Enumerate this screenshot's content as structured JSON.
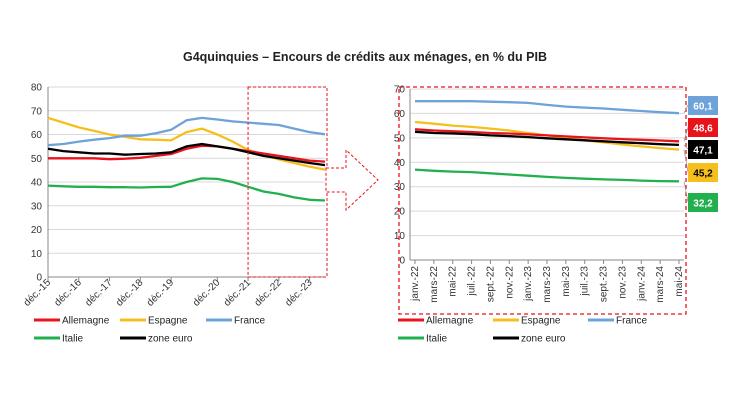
{
  "title": "G4quinquies – Encours de crédits aux ménages, en % du PIB",
  "colors": {
    "Allemagne": "#e8141b",
    "Espagne": "#f5bf1d",
    "France": "#6ea3d9",
    "Italie": "#22b04f",
    "zone euro": "#000000",
    "highlight": "#e8141b"
  },
  "chart_data": [
    {
      "type": "line",
      "title": "",
      "ylim": [
        0,
        80
      ],
      "yticks": [
        "0",
        "10",
        "20",
        "30",
        "40",
        "50",
        "60",
        "70",
        "80"
      ],
      "x_tick_labels": [
        "déc.-15",
        "déc.-16",
        "déc.-17",
        "déc.-18",
        "déc.-19",
        "déc.-20",
        "déc.-21",
        "déc.-22",
        "déc.-23"
      ],
      "x": [
        "déc.-15",
        "juin-16",
        "déc.-16",
        "juin-17",
        "déc.-17",
        "juin-18",
        "déc.-18",
        "juin-19",
        "déc.-19",
        "juin-20",
        "sept.-20",
        "déc.-20",
        "juin-21",
        "déc.-21",
        "juin-22",
        "déc.-22",
        "juin-23",
        "déc.-23",
        "mai-24"
      ],
      "series": [
        {
          "name": "Allemagne",
          "values": [
            50,
            50,
            50,
            50,
            49.6,
            49.8,
            50.2,
            51,
            51.8,
            54,
            55.3,
            55,
            54,
            53,
            52,
            51,
            50,
            49,
            48.6
          ]
        },
        {
          "name": "Espagne",
          "values": [
            67,
            65,
            63,
            61.5,
            60,
            59,
            58,
            57.8,
            57.5,
            61,
            62.5,
            60,
            57,
            53.5,
            51.5,
            49.5,
            48,
            46.5,
            45.2
          ]
        },
        {
          "name": "France",
          "values": [
            55.5,
            56,
            57,
            57.8,
            58.5,
            59.5,
            59.5,
            60.5,
            62,
            66,
            67,
            66.3,
            65.5,
            65,
            64.5,
            64,
            62.5,
            61,
            60.1
          ]
        },
        {
          "name": "Italie",
          "values": [
            38.5,
            38.2,
            38,
            38,
            37.8,
            37.8,
            37.7,
            37.9,
            38,
            40,
            41.5,
            41.3,
            40,
            38,
            36,
            35,
            33.5,
            32.5,
            32.2
          ]
        },
        {
          "name": "zone euro",
          "values": [
            54,
            53,
            52.5,
            52,
            52,
            51.5,
            51.8,
            52,
            52.5,
            55,
            56,
            55,
            54,
            52.5,
            51,
            50,
            49,
            48,
            47.1
          ]
        }
      ],
      "legend": "bottom",
      "highlight_range": [
        "déc.-21",
        "mai-24"
      ]
    },
    {
      "type": "line",
      "title": "",
      "ylim": [
        0,
        70
      ],
      "yticks": [
        "0",
        "10",
        "20",
        "30",
        "40",
        "50",
        "60",
        "70"
      ],
      "x": [
        "janv.-22",
        "mars-22",
        "mai-22",
        "juil.-22",
        "sept.-22",
        "nov.-22",
        "janv.-23",
        "mars-23",
        "mai-23",
        "juil.-23",
        "sept.-23",
        "nov.-23",
        "janv.-24",
        "mars-24",
        "mai-24"
      ],
      "series": [
        {
          "name": "Allemagne",
          "values": [
            53.5,
            53,
            52.7,
            52.4,
            52,
            51.8,
            51.4,
            51,
            50.6,
            50.2,
            49.8,
            49.5,
            49.2,
            48.9,
            48.6
          ]
        },
        {
          "name": "Espagne",
          "values": [
            56.5,
            55.8,
            55,
            54.5,
            53.8,
            53,
            52,
            51,
            50,
            49,
            48.2,
            47.3,
            46.5,
            45.8,
            45.2
          ]
        },
        {
          "name": "France",
          "values": [
            65,
            65,
            65,
            65,
            64.8,
            64.6,
            64.3,
            63.5,
            62.8,
            62.4,
            62,
            61.5,
            61,
            60.5,
            60.1
          ]
        },
        {
          "name": "Italie",
          "values": [
            37,
            36.5,
            36.2,
            36,
            35.5,
            35,
            34.5,
            34,
            33.6,
            33.3,
            33,
            32.8,
            32.5,
            32.3,
            32.2
          ]
        },
        {
          "name": "zone euro",
          "values": [
            52.5,
            52,
            51.8,
            51.5,
            51,
            50.7,
            50.3,
            49.8,
            49.4,
            49,
            48.6,
            48.2,
            47.8,
            47.4,
            47.1
          ]
        }
      ],
      "end_labels": [
        {
          "name": "France",
          "label": "60,1"
        },
        {
          "name": "Allemagne",
          "label": "48,6"
        },
        {
          "name": "zone euro",
          "label": "47,1"
        },
        {
          "name": "Espagne",
          "label": "45,2"
        },
        {
          "name": "Italie",
          "label": "32,2"
        }
      ],
      "legend": "bottom"
    }
  ]
}
